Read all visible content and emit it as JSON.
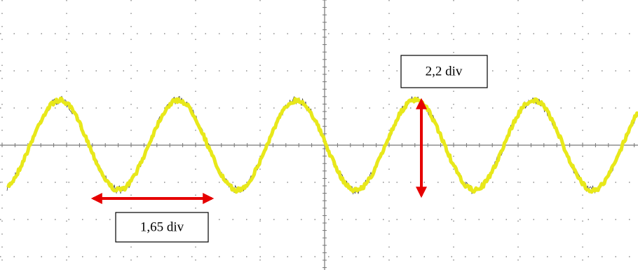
{
  "annotations": {
    "amplitude": {
      "label": "2,2 div"
    },
    "period": {
      "label": "1,65 div"
    }
  }
}
